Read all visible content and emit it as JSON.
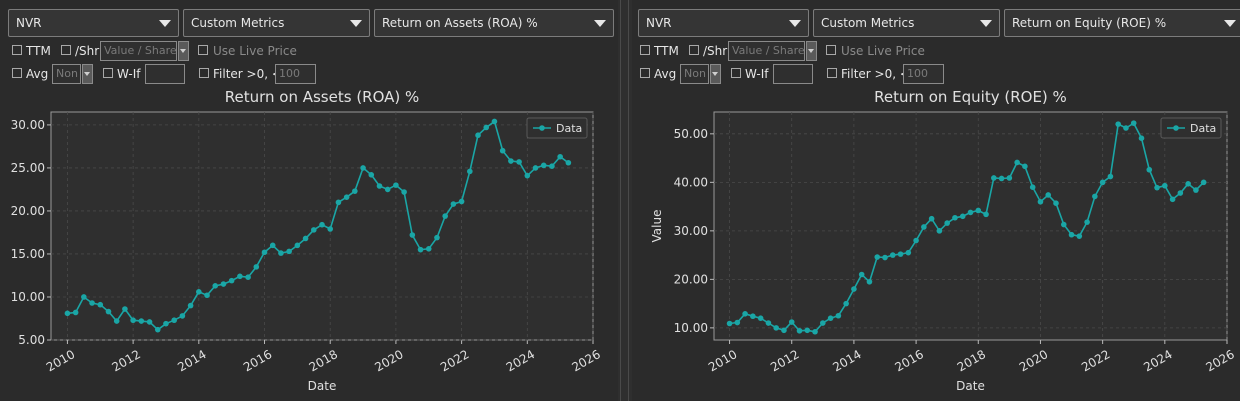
{
  "panels": [
    {
      "ticker": "NVR",
      "source": "Custom Metrics",
      "metric": "Return on Assets (ROA) %",
      "options": {
        "ttm": "TTM",
        "per_share": "/Shr",
        "value_share_placeholder": "Value / Share",
        "use_live_price": "Use Live Price",
        "avg": "Avg",
        "avg_value": "Non",
        "what_if": "W-If",
        "what_if_value": "",
        "filter": "Filter >0, <",
        "filter_value": "100"
      }
    },
    {
      "ticker": "NVR",
      "source": "Custom Metrics",
      "metric": "Return on Equity (ROE) %",
      "options": {
        "ttm": "TTM",
        "per_share": "/Shr",
        "value_share_placeholder": "Value / Share",
        "use_live_price": "Use Live Price",
        "avg": "Avg",
        "avg_value": "Non",
        "what_if": "W-If",
        "what_if_value": "",
        "filter": "Filter >0, <",
        "filter_value": "100"
      }
    }
  ],
  "colors": {
    "background": "#2b2b2b",
    "plot_background": "#2f2f2f",
    "line": "#1aa6a6",
    "grid": "#4a4a4a",
    "text": "#e0e0e0"
  },
  "chart_data": [
    {
      "type": "line",
      "title": "Return on Assets (ROA) %",
      "xlabel": "Date",
      "ylabel": "",
      "xlim": [
        2009.5,
        2026
      ],
      "ylim": [
        5.0,
        31.5
      ],
      "xticks": [
        2010,
        2012,
        2014,
        2016,
        2018,
        2020,
        2022,
        2024,
        2026
      ],
      "yticks": [
        5,
        10,
        15,
        20,
        25,
        30
      ],
      "yticklabels": [
        "5.00",
        "10.00",
        "15.00",
        "20.00",
        "25.00",
        "30.00"
      ],
      "grid": true,
      "legend_position": "top-right",
      "series": [
        {
          "name": "Data",
          "x": [
            2010.0,
            2010.25,
            2010.5,
            2010.75,
            2011.0,
            2011.25,
            2011.5,
            2011.75,
            2012.0,
            2012.25,
            2012.5,
            2012.75,
            2013.0,
            2013.25,
            2013.5,
            2013.75,
            2014.0,
            2014.25,
            2014.5,
            2014.75,
            2015.0,
            2015.25,
            2015.5,
            2015.75,
            2016.0,
            2016.25,
            2016.5,
            2016.75,
            2017.0,
            2017.25,
            2017.5,
            2017.75,
            2018.0,
            2018.25,
            2018.5,
            2018.75,
            2019.0,
            2019.25,
            2019.5,
            2019.75,
            2020.0,
            2020.25,
            2020.5,
            2020.75,
            2021.0,
            2021.25,
            2021.5,
            2021.75,
            2022.0,
            2022.25,
            2022.5,
            2022.75,
            2023.0,
            2023.25,
            2023.5,
            2023.75,
            2024.0,
            2024.25,
            2024.5,
            2024.75,
            2025.0,
            2025.25
          ],
          "y": [
            8.1,
            8.2,
            10.0,
            9.3,
            9.1,
            8.3,
            7.2,
            8.6,
            7.3,
            7.2,
            7.1,
            6.2,
            6.9,
            7.3,
            7.8,
            9.0,
            10.6,
            10.2,
            11.3,
            11.5,
            11.9,
            12.4,
            12.3,
            13.5,
            15.2,
            16.0,
            15.1,
            15.3,
            16.0,
            16.8,
            17.8,
            18.4,
            17.9,
            21.0,
            21.6,
            22.3,
            25.0,
            24.2,
            22.9,
            22.5,
            23.0,
            22.2,
            17.2,
            15.5,
            15.6,
            16.9,
            19.4,
            20.8,
            21.1,
            24.6,
            28.8,
            29.7,
            30.4,
            27.0,
            25.8,
            25.7,
            24.1,
            25.0,
            25.3,
            25.2,
            26.3,
            25.6
          ]
        }
      ]
    },
    {
      "type": "line",
      "title": "Return on Equity (ROE) %",
      "xlabel": "Date",
      "ylabel": "Value",
      "xlim": [
        2009.5,
        2026
      ],
      "ylim": [
        7.5,
        54.5
      ],
      "xticks": [
        2010,
        2012,
        2014,
        2016,
        2018,
        2020,
        2022,
        2024,
        2026
      ],
      "yticks": [
        10,
        20,
        30,
        40,
        50
      ],
      "yticklabels": [
        "10.00",
        "20.00",
        "30.00",
        "40.00",
        "50.00"
      ],
      "grid": true,
      "legend_position": "top-right",
      "series": [
        {
          "name": "Data",
          "x": [
            2010.0,
            2010.25,
            2010.5,
            2010.75,
            2011.0,
            2011.25,
            2011.5,
            2011.75,
            2012.0,
            2012.25,
            2012.5,
            2012.75,
            2013.0,
            2013.25,
            2013.5,
            2013.75,
            2014.0,
            2014.25,
            2014.5,
            2014.75,
            2015.0,
            2015.25,
            2015.5,
            2015.75,
            2016.0,
            2016.25,
            2016.5,
            2016.75,
            2017.0,
            2017.25,
            2017.5,
            2017.75,
            2018.0,
            2018.25,
            2018.5,
            2018.75,
            2019.0,
            2019.25,
            2019.5,
            2019.75,
            2020.0,
            2020.25,
            2020.5,
            2020.75,
            2021.0,
            2021.25,
            2021.5,
            2021.75,
            2022.0,
            2022.25,
            2022.5,
            2022.75,
            2023.0,
            2023.25,
            2023.5,
            2023.75,
            2024.0,
            2024.25,
            2024.5,
            2024.75,
            2025.0,
            2025.25
          ],
          "y": [
            10.9,
            11.1,
            12.9,
            12.4,
            12.0,
            11.0,
            10.0,
            9.5,
            11.2,
            9.4,
            9.5,
            9.2,
            11.0,
            12.0,
            12.5,
            15.0,
            18.0,
            21.0,
            19.5,
            24.6,
            24.5,
            25.0,
            25.2,
            25.5,
            28.0,
            30.8,
            32.5,
            30.0,
            31.6,
            32.7,
            33.0,
            33.8,
            34.2,
            33.4,
            40.9,
            40.8,
            40.9,
            44.1,
            43.3,
            39.0,
            36.0,
            37.4,
            35.7,
            31.3,
            29.2,
            28.9,
            31.8,
            37.1,
            40.0,
            41.2,
            52.0,
            51.2,
            52.2,
            49.1,
            42.6,
            38.9,
            39.3,
            36.5,
            37.8,
            39.7,
            38.4,
            40.0
          ]
        }
      ]
    }
  ]
}
